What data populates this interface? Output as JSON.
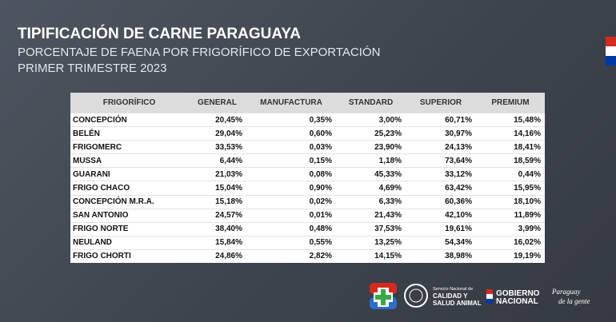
{
  "header": {
    "title": "TIPIFICACIÓN DE CARNE PARAGUAYA",
    "subtitle_lines": [
      "PORCENTAJE DE FAENA POR FRIGORÍFICO DE EXPORTACIÓN",
      "PRIMER TRIMESTRE 2023"
    ]
  },
  "table": {
    "columns": [
      "FRIGORÍFICO",
      "GENERAL",
      "MANUFACTURA",
      "STANDARD",
      "SUPERIOR",
      "PREMIUM"
    ],
    "rows": [
      [
        "CONCEPCIÓN",
        "20,45%",
        "0,35%",
        "3,00%",
        "60,71%",
        "15,48%"
      ],
      [
        "BELÉN",
        "29,04%",
        "0,60%",
        "25,23%",
        "30,97%",
        "14,16%"
      ],
      [
        "FRIGOMERC",
        "33,53%",
        "0,03%",
        "23,90%",
        "24,13%",
        "18,41%"
      ],
      [
        "MUSSA",
        "6,44%",
        "0,15%",
        "1,18%",
        "73,64%",
        "18,59%"
      ],
      [
        "GUARANI",
        "21,03%",
        "0,08%",
        "45,33%",
        "33,12%",
        "0,44%"
      ],
      [
        "FRIGO CHACO",
        "15,04%",
        "0,90%",
        "4,69%",
        "63,42%",
        "15,95%"
      ],
      [
        "CONCEPCIÓN M.R.A.",
        "15,18%",
        "0,02%",
        "6,33%",
        "60,36%",
        "18,10%"
      ],
      [
        "SAN ANTONIO",
        "24,57%",
        "0,01%",
        "21,43%",
        "42,10%",
        "11,89%"
      ],
      [
        "FRIGO NORTE",
        "38,40%",
        "0,48%",
        "37,53%",
        "19,61%",
        "3,99%"
      ],
      [
        "NEULAND",
        "15,84%",
        "0,55%",
        "13,25%",
        "54,34%",
        "16,02%"
      ],
      [
        "FRIGO CHORTI",
        "24,86%",
        "2,82%",
        "14,15%",
        "38,98%",
        "19,19%"
      ]
    ]
  },
  "footer": {
    "senacsa": [
      "Servicio Nacional de",
      "CALIDAD Y",
      "SALUD ANIMAL"
    ],
    "gobierno": [
      "GOBIERNO",
      "NACIONAL"
    ],
    "slogan": [
      "Paraguay",
      "de la gente"
    ]
  }
}
